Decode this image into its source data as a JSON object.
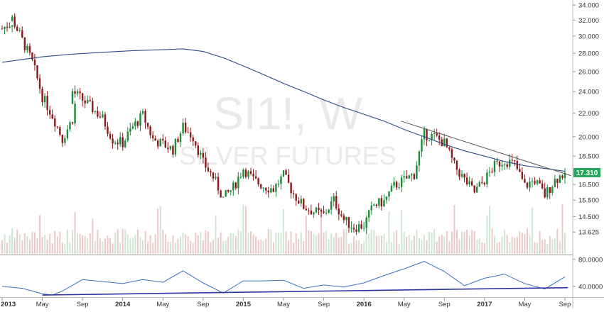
{
  "chart_data": {
    "type": "candlestick",
    "watermark": {
      "symbol": "SI1!, W",
      "name": "SILVER FUTURES"
    },
    "price_axis": {
      "ticks": [
        "34.000",
        "32.000",
        "30.000",
        "28.000",
        "26.000",
        "24.000",
        "22.000",
        "20.000",
        "18.500",
        "16.500",
        "15.500",
        "14.500",
        "13.625"
      ],
      "scale": "log",
      "range": [
        13.1,
        34.5
      ]
    },
    "last_price_label": "17.310",
    "time_axis": {
      "labels": [
        "2013",
        "May",
        "Sep",
        "2014",
        "May",
        "Sep",
        "2015",
        "May",
        "Sep",
        "2016",
        "May",
        "Sep",
        "2017",
        "May",
        "Sep"
      ],
      "bold": [
        "2013",
        "2014",
        "2015",
        "2016",
        "2017"
      ]
    },
    "moving_average": [
      [
        "2013-01",
        27.0
      ],
      [
        "2013-03",
        27.3
      ],
      [
        "2013-05",
        27.6
      ],
      [
        "2013-08",
        27.9
      ],
      [
        "2013-11",
        28.1
      ],
      [
        "2014-02",
        28.3
      ],
      [
        "2014-05",
        28.4
      ],
      [
        "2014-07",
        28.5
      ],
      [
        "2014-09",
        28.2
      ],
      [
        "2014-11",
        27.5
      ],
      [
        "2015-01",
        26.6
      ],
      [
        "2015-03",
        25.7
      ],
      [
        "2015-05",
        24.8
      ],
      [
        "2015-07",
        24.0
      ],
      [
        "2015-09",
        23.2
      ],
      [
        "2015-11",
        22.5
      ],
      [
        "2016-01",
        21.9
      ],
      [
        "2016-03",
        21.3
      ],
      [
        "2016-05",
        20.6
      ],
      [
        "2016-07",
        20.0
      ],
      [
        "2016-09",
        19.4
      ],
      [
        "2016-11",
        18.9
      ],
      [
        "2017-01",
        18.5
      ],
      [
        "2017-03",
        18.1
      ],
      [
        "2017-05",
        17.8
      ],
      [
        "2017-07",
        17.6
      ],
      [
        "2017-09",
        17.4
      ]
    ],
    "trendline": [
      [
        "2016-05",
        21.3
      ],
      [
        "2017-09",
        17.1
      ]
    ],
    "price_path": [
      [
        "2013-01",
        30.9
      ],
      [
        "2013-02",
        31.8
      ],
      [
        "2013-02",
        32.2
      ],
      [
        "2013-03",
        29.5
      ],
      [
        "2013-04",
        27.0
      ],
      [
        "2013-05",
        23.5
      ],
      [
        "2013-06",
        21.8
      ],
      [
        "2013-07",
        19.8
      ],
      [
        "2013-08",
        21.5
      ],
      [
        "2013-08",
        24.0
      ],
      [
        "2013-09",
        23.2
      ],
      [
        "2013-10",
        22.4
      ],
      [
        "2013-11",
        21.5
      ],
      [
        "2013-12",
        19.8
      ],
      [
        "2014-01",
        19.5
      ],
      [
        "2014-02",
        20.8
      ],
      [
        "2014-03",
        21.8
      ],
      [
        "2014-04",
        19.8
      ],
      [
        "2014-05",
        19.4
      ],
      [
        "2014-06",
        19.0
      ],
      [
        "2014-07",
        20.8
      ],
      [
        "2014-08",
        20.0
      ],
      [
        "2014-09",
        18.0
      ],
      [
        "2014-10",
        17.0
      ],
      [
        "2014-11",
        15.6
      ],
      [
        "2014-12",
        16.3
      ],
      [
        "2015-01",
        17.6
      ],
      [
        "2015-02",
        16.8
      ],
      [
        "2015-03",
        16.4
      ],
      [
        "2015-04",
        16.2
      ],
      [
        "2015-05",
        17.1
      ],
      [
        "2015-06",
        15.9
      ],
      [
        "2015-07",
        15.1
      ],
      [
        "2015-08",
        14.8
      ],
      [
        "2015-09",
        14.6
      ],
      [
        "2015-10",
        15.5
      ],
      [
        "2015-11",
        14.3
      ],
      [
        "2015-12",
        13.9
      ],
      [
        "2016-01",
        14.0
      ],
      [
        "2016-02",
        15.2
      ],
      [
        "2016-03",
        15.4
      ],
      [
        "2016-04",
        16.4
      ],
      [
        "2016-05",
        16.8
      ],
      [
        "2016-06",
        17.2
      ],
      [
        "2016-07",
        20.2
      ],
      [
        "2016-08",
        20.0
      ],
      [
        "2016-09",
        19.5
      ],
      [
        "2016-10",
        17.8
      ],
      [
        "2016-11",
        16.8
      ],
      [
        "2016-12",
        16.0
      ],
      [
        "2017-01",
        16.8
      ],
      [
        "2017-02",
        17.8
      ],
      [
        "2017-03",
        18.2
      ],
      [
        "2017-04",
        17.9
      ],
      [
        "2017-05",
        16.4
      ],
      [
        "2017-06",
        16.8
      ],
      [
        "2017-07",
        15.8
      ],
      [
        "2017-08",
        16.8
      ],
      [
        "2017-09",
        17.31
      ]
    ],
    "oscillator": {
      "ticks": [
        "80.0000",
        "40.0000"
      ],
      "range": [
        25,
        85
      ],
      "path": [
        [
          "2013-01",
          40
        ],
        [
          "2013-03",
          37
        ],
        [
          "2013-05",
          29
        ],
        [
          "2013-06",
          27
        ],
        [
          "2013-07",
          33
        ],
        [
          "2013-09",
          50
        ],
        [
          "2013-11",
          47
        ],
        [
          "2014-01",
          44
        ],
        [
          "2014-03",
          50
        ],
        [
          "2014-05",
          46
        ],
        [
          "2014-07",
          63
        ],
        [
          "2014-09",
          45
        ],
        [
          "2014-11",
          30
        ],
        [
          "2015-01",
          48
        ],
        [
          "2015-03",
          48
        ],
        [
          "2015-05",
          49
        ],
        [
          "2015-07",
          37
        ],
        [
          "2015-09",
          42
        ],
        [
          "2015-11",
          39
        ],
        [
          "2016-01",
          45
        ],
        [
          "2016-03",
          56
        ],
        [
          "2016-05",
          66
        ],
        [
          "2016-07",
          77
        ],
        [
          "2016-09",
          62
        ],
        [
          "2016-11",
          41
        ],
        [
          "2017-01",
          52
        ],
        [
          "2017-03",
          58
        ],
        [
          "2017-05",
          44
        ],
        [
          "2017-07",
          36
        ],
        [
          "2017-09",
          54
        ]
      ],
      "trendline": [
        [
          "2013-05",
          27
        ],
        [
          "2017-09",
          38
        ]
      ]
    }
  }
}
